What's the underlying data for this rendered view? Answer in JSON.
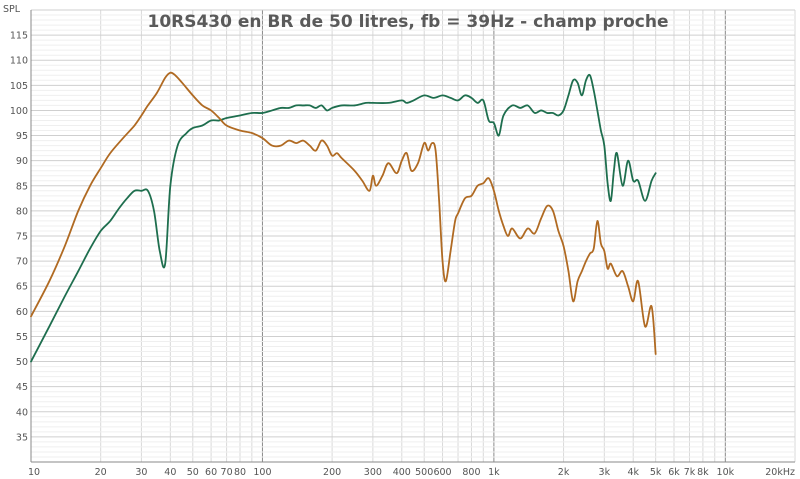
{
  "chart_data": {
    "type": "line",
    "title": "10RS430 en BR de 50 litres, fb = 39Hz - champ proche",
    "ylabel": "SPL",
    "xlabel": "",
    "xscale": "log",
    "xlim": [
      10,
      20000
    ],
    "ylim": [
      30,
      120
    ],
    "grid": true,
    "x_ticks": [
      {
        "v": 10,
        "label": "10"
      },
      {
        "v": 20,
        "label": "20"
      },
      {
        "v": 30,
        "label": "30"
      },
      {
        "v": 40,
        "label": "40"
      },
      {
        "v": 50,
        "label": "50"
      },
      {
        "v": 60,
        "label": "60"
      },
      {
        "v": 70,
        "label": "70"
      },
      {
        "v": 80,
        "label": "80"
      },
      {
        "v": 100,
        "label": "100"
      },
      {
        "v": 200,
        "label": "200"
      },
      {
        "v": 300,
        "label": "300"
      },
      {
        "v": 400,
        "label": "400"
      },
      {
        "v": 500,
        "label": "500"
      },
      {
        "v": 600,
        "label": "600"
      },
      {
        "v": 800,
        "label": "800"
      },
      {
        "v": 1000,
        "label": "1k"
      },
      {
        "v": 2000,
        "label": "2k"
      },
      {
        "v": 3000,
        "label": "3k"
      },
      {
        "v": 4000,
        "label": "4k"
      },
      {
        "v": 5000,
        "label": "5k"
      },
      {
        "v": 6000,
        "label": "6k"
      },
      {
        "v": 7000,
        "label": "7k"
      },
      {
        "v": 8000,
        "label": "8k"
      },
      {
        "v": 10000,
        "label": "10k"
      },
      {
        "v": 20000,
        "label": "20kHz"
      }
    ],
    "y_ticks": [
      35,
      40,
      45,
      50,
      55,
      60,
      65,
      70,
      75,
      80,
      85,
      90,
      95,
      100,
      105,
      110,
      115
    ],
    "series": [
      {
        "name": "green",
        "color": "#1e6e4e",
        "x": [
          10,
          12,
          14,
          16,
          18,
          20,
          22,
          24,
          26,
          28,
          30,
          32,
          34,
          36,
          38,
          40,
          43,
          47,
          50,
          55,
          60,
          65,
          70,
          80,
          90,
          100,
          110,
          120,
          130,
          140,
          150,
          160,
          170,
          180,
          190,
          200,
          220,
          250,
          280,
          300,
          350,
          400,
          420,
          450,
          500,
          550,
          600,
          650,
          700,
          750,
          800,
          850,
          900,
          950,
          1000,
          1050,
          1100,
          1200,
          1300,
          1400,
          1500,
          1600,
          1700,
          1800,
          1900,
          2000,
          2100,
          2200,
          2300,
          2400,
          2500,
          2600,
          2700,
          2800,
          2900,
          3000,
          3100,
          3200,
          3300,
          3400,
          3600,
          3800,
          4000,
          4200,
          4500,
          4800,
          5000
        ],
        "values": [
          50,
          57,
          63,
          68,
          72.5,
          76,
          78,
          80.5,
          82.5,
          84,
          84,
          84,
          80,
          72,
          69.5,
          85,
          93,
          95.5,
          96.5,
          97,
          98,
          98,
          98.5,
          99,
          99.5,
          99.5,
          100,
          100.5,
          100.5,
          101,
          101,
          101,
          100.5,
          101,
          100,
          100.5,
          101,
          101,
          101.5,
          101.5,
          101.5,
          102,
          101.5,
          102,
          103,
          102.5,
          103,
          102.5,
          102,
          103,
          102.5,
          101.5,
          102,
          98,
          97.5,
          95,
          99,
          101,
          100.5,
          101,
          99.5,
          100,
          99.5,
          99.5,
          99,
          100,
          103,
          106,
          105.5,
          103,
          106,
          107,
          104,
          100,
          96,
          93,
          85.5,
          82,
          88,
          91.5,
          85,
          90,
          86,
          86,
          82,
          86,
          87.5
        ]
      },
      {
        "name": "orange",
        "color": "#b06a22",
        "x": [
          10,
          12,
          14,
          16,
          18,
          20,
          22,
          25,
          28,
          30,
          32,
          35,
          38,
          40,
          42,
          45,
          50,
          55,
          60,
          65,
          70,
          80,
          90,
          100,
          110,
          120,
          130,
          140,
          150,
          160,
          170,
          180,
          190,
          200,
          210,
          220,
          250,
          270,
          290,
          300,
          310,
          330,
          350,
          380,
          400,
          420,
          440,
          470,
          500,
          520,
          540,
          560,
          580,
          600,
          620,
          650,
          680,
          700,
          750,
          800,
          850,
          900,
          950,
          1000,
          1050,
          1100,
          1150,
          1200,
          1300,
          1400,
          1500,
          1600,
          1700,
          1800,
          1900,
          2000,
          2100,
          2200,
          2300,
          2400,
          2500,
          2600,
          2700,
          2800,
          2900,
          3000,
          3100,
          3200,
          3400,
          3600,
          3800,
          4000,
          4200,
          4500,
          4800,
          5000
        ],
        "values": [
          59,
          66,
          73,
          80,
          85,
          88.5,
          91.5,
          94.5,
          97,
          99,
          101,
          103.5,
          106.5,
          107.5,
          107,
          105.5,
          103,
          101,
          100,
          98.5,
          97,
          96,
          95.5,
          94.5,
          93,
          93,
          94,
          93.5,
          94,
          93,
          92,
          94,
          93,
          91,
          91.5,
          90.5,
          88,
          86,
          84,
          87,
          85,
          87,
          89.5,
          87.5,
          90,
          91.5,
          88,
          89.5,
          93.5,
          92,
          93.5,
          92,
          82,
          70,
          66,
          72,
          78,
          79.5,
          82.5,
          83,
          85,
          85.5,
          86.5,
          84,
          80,
          77,
          75,
          76.5,
          74.5,
          76.5,
          75.5,
          78.5,
          81,
          80,
          76,
          73,
          68,
          62,
          66,
          68,
          70,
          71.5,
          72.5,
          78,
          73.5,
          72,
          68.5,
          69.5,
          67,
          68,
          65,
          62,
          66,
          57,
          61,
          51.5
        ]
      }
    ]
  }
}
